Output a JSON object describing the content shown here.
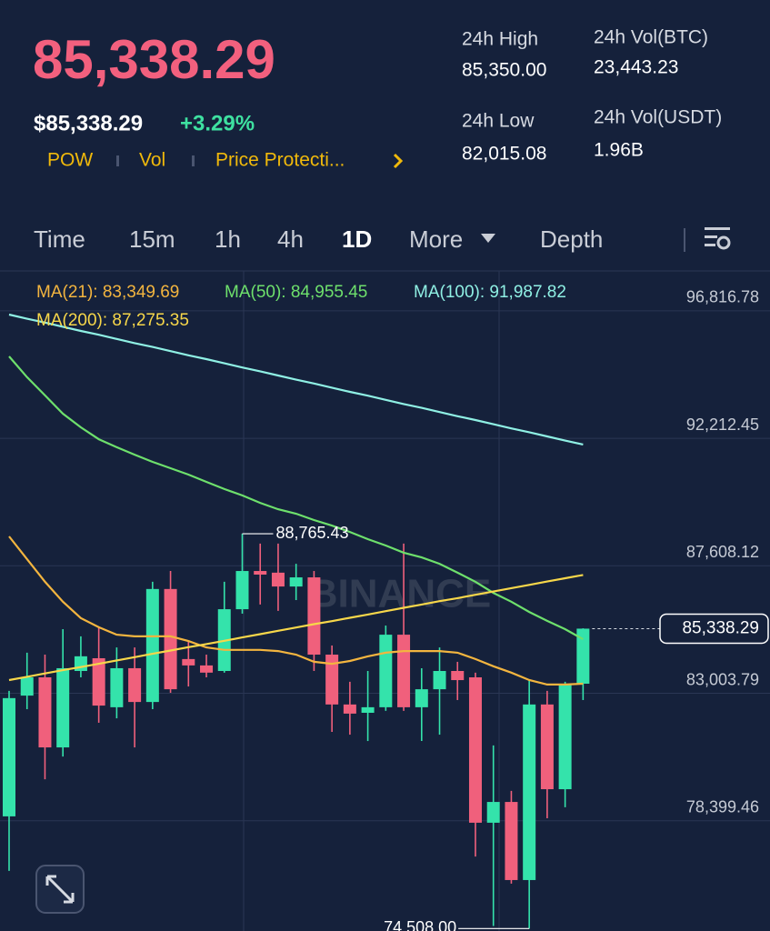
{
  "header": {
    "price": "85,338.29",
    "usd_price": "$85,338.29",
    "change": "+3.29%",
    "tags": [
      "POW",
      "Vol",
      "Price Protecti..."
    ]
  },
  "stats": [
    {
      "label": "24h High",
      "value": "85,350.00"
    },
    {
      "label": "24h Vol(BTC)",
      "value": "23,443.23"
    },
    {
      "label": "24h Low",
      "value": "82,015.08"
    },
    {
      "label": "24h Vol(USDT)",
      "value": "1.96B"
    }
  ],
  "tabs": [
    "Time",
    "15m",
    "1h",
    "4h",
    "1D",
    "More",
    "Depth"
  ],
  "chart_data": {
    "type": "candlestick",
    "up_color": "#34e3ab",
    "down_color": "#f0607c",
    "open": [
      78560,
      82920,
      83580,
      81050,
      83810,
      84270,
      82500,
      83910,
      82690,
      86770,
      84240,
      84010,
      83810,
      86040,
      87420,
      87360,
      86860,
      87190,
      84400,
      82600,
      82300,
      82500,
      85120,
      82500,
      83150,
      83810,
      83580,
      78330,
      79080,
      76260,
      82600,
      79540,
      83350
    ],
    "high": [
      83090,
      84470,
      84400,
      85320,
      85060,
      85390,
      84660,
      84660,
      87030,
      87420,
      84890,
      84400,
      87030,
      88765.43,
      88410,
      88410,
      87680,
      87420,
      84730,
      83420,
      83810,
      85450,
      88410,
      83910,
      84660,
      84140,
      83750,
      81120,
      79480,
      83480,
      83090,
      83420,
      85350
    ],
    "low": [
      76590,
      82430,
      79900,
      80720,
      83580,
      81940,
      82100,
      81050,
      82430,
      83020,
      83250,
      83580,
      83750,
      85880,
      86210,
      85980,
      86370,
      83810,
      81610,
      81510,
      81280,
      82370,
      82370,
      81280,
      81510,
      82760,
      77110,
      74600,
      76130,
      74508.0,
      78490,
      78890,
      82760
    ],
    "close": [
      82830,
      83580,
      81050,
      83910,
      84340,
      82560,
      83910,
      82690,
      86770,
      83150,
      84010,
      83750,
      86040,
      87420,
      87290,
      86860,
      87190,
      84400,
      82600,
      82270,
      82500,
      85120,
      82500,
      83150,
      83810,
      83480,
      78330,
      79080,
      76260,
      82600,
      79540,
      83350,
      85338.29
    ],
    "series": [
      {
        "name": "MA(21): 83,349.69",
        "color": "#f3b53f",
        "values": [
          88670,
          87850,
          87030,
          86310,
          85720,
          85390,
          85120,
          85060,
          85060,
          85060,
          84890,
          84660,
          84570,
          84570,
          84570,
          84530,
          84400,
          84140,
          84070,
          84170,
          84340,
          84470,
          84530,
          84530,
          84530,
          84470,
          84240,
          83980,
          83750,
          83480,
          83320,
          83320,
          83349.69
        ]
      },
      {
        "name": "MA(50): 84,955.45",
        "color": "#6ee06c",
        "values": [
          95170,
          94420,
          93760,
          93100,
          92610,
          92180,
          91890,
          91620,
          91360,
          91130,
          90900,
          90640,
          90380,
          90150,
          89880,
          89650,
          89490,
          89260,
          89060,
          88830,
          88570,
          88340,
          88080,
          87910,
          87680,
          87360,
          87030,
          86630,
          86310,
          85940,
          85620,
          85320,
          84955.45
        ]
      },
      {
        "name": "MA(100): 91,987.82",
        "color": "#8ff0e4",
        "values": [
          96680,
          96530,
          96390,
          96240,
          96090,
          95950,
          95800,
          95650,
          95510,
          95360,
          95210,
          95070,
          94920,
          94770,
          94630,
          94480,
          94330,
          94190,
          94040,
          93890,
          93750,
          93600,
          93450,
          93310,
          93160,
          93010,
          92870,
          92720,
          92570,
          92430,
          92280,
          92130,
          91987.82
        ]
      },
      {
        "name": "MA(200): 87,275.35",
        "color": "#f7d74a",
        "values": [
          83480,
          83600,
          83720,
          83840,
          83950,
          84070,
          84190,
          84310,
          84430,
          84550,
          84670,
          84780,
          84900,
          85020,
          85140,
          85260,
          85380,
          85500,
          85610,
          85730,
          85850,
          85970,
          86090,
          86210,
          86330,
          86440,
          86560,
          86680,
          86800,
          86920,
          87040,
          87160,
          87275.35
        ]
      }
    ],
    "ylim": [
      74420,
      98190
    ],
    "yticks": [
      {
        "value": 96816.78,
        "label": "96,816.78"
      },
      {
        "value": 92212.45,
        "label": "92,212.45"
      },
      {
        "value": 87608.12,
        "label": "87,608.12"
      },
      {
        "value": 83003.79,
        "label": "83,003.79"
      },
      {
        "value": 78399.46,
        "label": "78,399.46"
      }
    ],
    "grid": true,
    "annotations": [
      {
        "value": 88765.43,
        "label": "88,765.43"
      },
      {
        "value": 74508.0,
        "label": "74,508.00"
      }
    ],
    "current_price": {
      "value": 85338.29,
      "label": "85,338.29"
    },
    "watermark": "BINANCE"
  }
}
